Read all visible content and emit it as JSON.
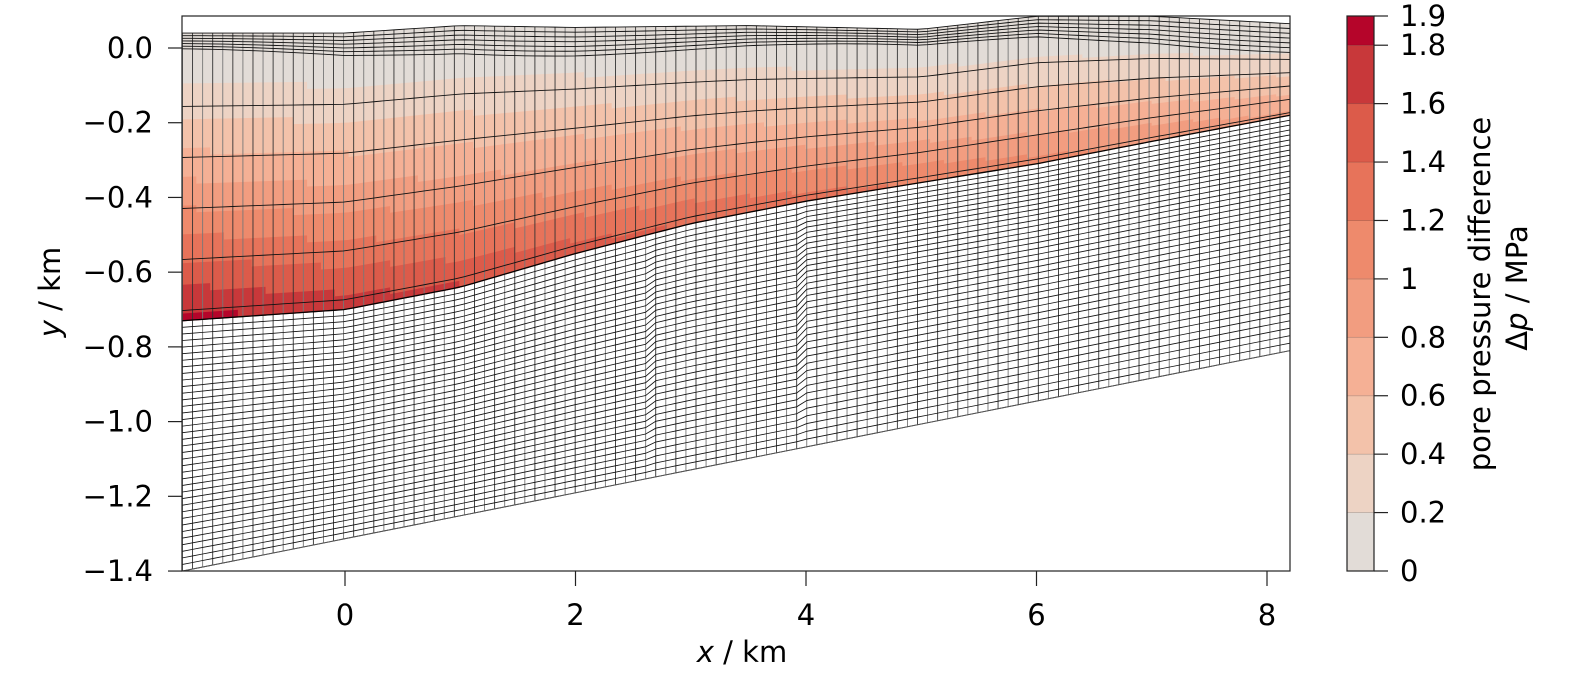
{
  "chart_data": {
    "type": "heatmap",
    "title": "",
    "xlabel": "x / km",
    "ylabel": "y / km",
    "xlim": [
      -1.41,
      8.2
    ],
    "ylim": [
      -1.4,
      0.09
    ],
    "xticks": [
      0,
      2,
      4,
      6,
      8
    ],
    "xtick_labels": [
      "0",
      "2",
      "4",
      "6",
      "8"
    ],
    "yticks": [
      0.0,
      -0.2,
      -0.4,
      -0.6,
      -0.8,
      -1.0,
      -1.2,
      -1.4
    ],
    "ytick_labels": [
      "0.0",
      "−0.2",
      "−0.4",
      "−0.6",
      "−0.8",
      "−1.0",
      "−1.2",
      "−1.4"
    ],
    "grid": false,
    "colorbar": {
      "label_line1": "pore pressure difference",
      "label_line2": "Δp / MPa",
      "levels": [
        0,
        0.2,
        0.4,
        0.6,
        0.8,
        1.0,
        1.2,
        1.4,
        1.6,
        1.8,
        1.9
      ],
      "tick_labels": [
        "0",
        "0.2",
        "0.4",
        "0.6",
        "0.8",
        "1",
        "1.2",
        "1.4",
        "1.6",
        "1.8",
        "1.9"
      ],
      "colors": [
        "#e2dcd7",
        "#edd3c4",
        "#f3c2aa",
        "#f5b095",
        "#f29d80",
        "#ee8a6c",
        "#e7735a",
        "#dc5b4a",
        "#c8383a",
        "#b5052a"
      ]
    },
    "surface_top": {
      "x": [
        -1.41,
        0,
        1,
        2,
        3.5,
        5,
        6,
        7,
        8.2
      ],
      "y": [
        0.04,
        0.04,
        0.06,
        0.055,
        0.06,
        0.05,
        0.085,
        0.085,
        0.065
      ]
    },
    "reservoir_base": {
      "x": [
        -1.41,
        0,
        1,
        2,
        3,
        4,
        5,
        6,
        7,
        8.2
      ],
      "y": [
        -0.73,
        -0.7,
        -0.64,
        -0.55,
        -0.47,
        -0.41,
        -0.36,
        -0.31,
        -0.25,
        -0.18
      ]
    },
    "mesh_bottom": {
      "x": [
        -1.41,
        8.2
      ],
      "y": [
        -1.4,
        -0.81
      ]
    },
    "faults_x_km": [
      2.65,
      3.95
    ],
    "description": "Deformed finite-element mesh of a layered subsurface model; the upper reservoir region is colored by pore pressure difference, highest (~1.9 MPa) at lower-left near the reservoir base and decreasing toward the surface and to the right."
  }
}
